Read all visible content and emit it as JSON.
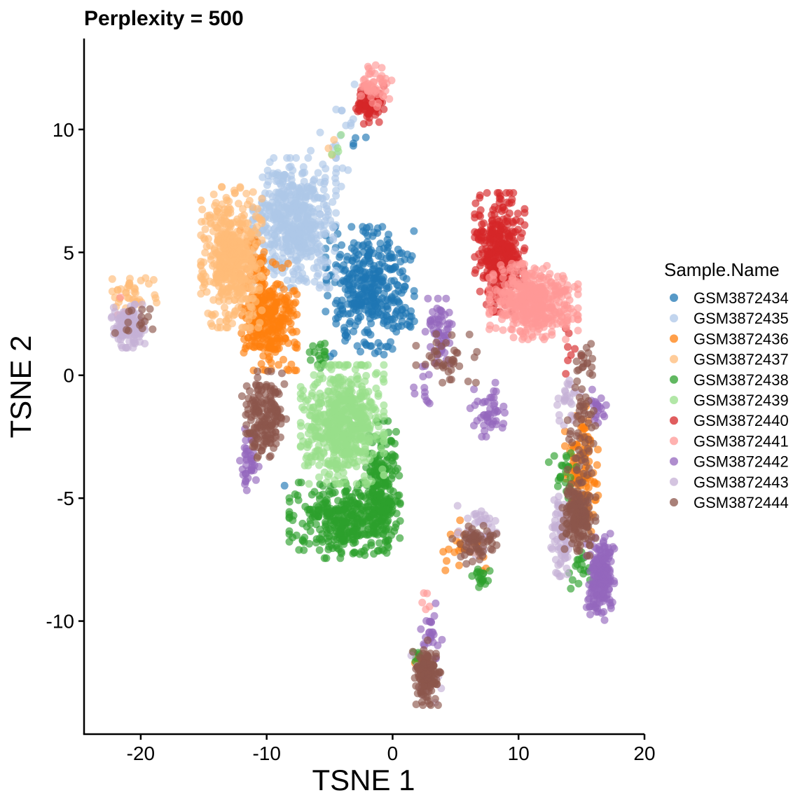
{
  "chart_data": {
    "type": "scatter",
    "title": "Perplexity = 500",
    "xlabel": "TSNE 1",
    "ylabel": "TSNE 2",
    "xlim": [
      -24.5,
      20
    ],
    "ylim": [
      -14.6,
      13.7
    ],
    "x_ticks": [
      -20,
      -10,
      0,
      10,
      20
    ],
    "x_tick_labels": [
      "-20",
      "-10",
      "0",
      "10",
      "20"
    ],
    "y_ticks": [
      -10,
      -5,
      0,
      5,
      10
    ],
    "y_tick_labels": [
      "-10",
      "-5",
      "0",
      "5",
      "10"
    ],
    "grid": false,
    "legend_title": "Sample.Name",
    "legend_position": "right",
    "series": [
      {
        "name": "GSM3872434",
        "color": "#1f77b4",
        "clusters": [
          {
            "cx": -1.8,
            "cy": 3.4,
            "sx": 1.6,
            "sy": 1.2,
            "n": 380
          },
          {
            "cx": -2.5,
            "cy": 9.5,
            "sx": 0.4,
            "sy": 0.4,
            "n": 4
          },
          {
            "cx": -8.5,
            "cy": -4.6,
            "sx": 0.1,
            "sy": 0.1,
            "n": 1
          }
        ]
      },
      {
        "name": "GSM3872435",
        "color": "#aec7e8",
        "clusters": [
          {
            "cx": -7.8,
            "cy": 6.2,
            "sx": 1.5,
            "sy": 1.2,
            "n": 520
          },
          {
            "cx": -5.0,
            "cy": 9.0,
            "sx": 0.9,
            "sy": 0.6,
            "n": 12
          },
          {
            "cx": -3.5,
            "cy": 10.8,
            "sx": 0.6,
            "sy": 0.5,
            "n": 8
          }
        ]
      },
      {
        "name": "GSM3872436",
        "color": "#ff7f0e",
        "clusters": [
          {
            "cx": -9.8,
            "cy": 2.4,
            "sx": 1.0,
            "sy": 1.0,
            "n": 300
          },
          {
            "cx": -11.0,
            "cy": 4.6,
            "sx": 0.5,
            "sy": 0.8,
            "n": 40
          },
          {
            "cx": 15.0,
            "cy": -3.8,
            "sx": 0.6,
            "sy": 1.2,
            "n": 120
          },
          {
            "cx": 6.0,
            "cy": -7.0,
            "sx": 0.9,
            "sy": 0.5,
            "n": 30
          },
          {
            "cx": 2.0,
            "cy": -11.8,
            "sx": 0.4,
            "sy": 0.3,
            "n": 6
          }
        ]
      },
      {
        "name": "GSM3872437",
        "color": "#ffbb78",
        "clusters": [
          {
            "cx": -12.8,
            "cy": 4.8,
            "sx": 1.1,
            "sy": 1.3,
            "n": 480
          },
          {
            "cx": -20.5,
            "cy": 3.3,
            "sx": 0.8,
            "sy": 0.4,
            "n": 40
          },
          {
            "cx": -4.8,
            "cy": 9.4,
            "sx": 0.3,
            "sy": 0.2,
            "n": 3
          }
        ]
      },
      {
        "name": "GSM3872438",
        "color": "#2ca02c",
        "clusters": [
          {
            "cx": -3.8,
            "cy": -5.9,
            "sx": 2.0,
            "sy": 0.7,
            "n": 360
          },
          {
            "cx": -0.8,
            "cy": -4.5,
            "sx": 0.6,
            "sy": 1.2,
            "n": 200
          },
          {
            "cx": -5.8,
            "cy": 0.8,
            "sx": 0.4,
            "sy": 0.3,
            "n": 18
          },
          {
            "cx": 7.0,
            "cy": -8.2,
            "sx": 0.4,
            "sy": 0.2,
            "n": 18
          },
          {
            "cx": 13.5,
            "cy": -4.0,
            "sx": 0.5,
            "sy": 0.5,
            "n": 22
          },
          {
            "cx": 14.8,
            "cy": -7.8,
            "sx": 0.4,
            "sy": 0.4,
            "n": 18
          },
          {
            "cx": 2.0,
            "cy": -11.5,
            "sx": 0.4,
            "sy": 0.3,
            "n": 8
          }
        ]
      },
      {
        "name": "GSM3872439",
        "color": "#98df8a",
        "clusters": [
          {
            "cx": -4.0,
            "cy": -2.0,
            "sx": 1.5,
            "sy": 1.1,
            "n": 600
          },
          {
            "cx": -4.5,
            "cy": 9.3,
            "sx": 0.4,
            "sy": 0.3,
            "n": 4
          }
        ]
      },
      {
        "name": "GSM3872440",
        "color": "#d62728",
        "clusters": [
          {
            "cx": 8.5,
            "cy": 5.0,
            "sx": 0.9,
            "sy": 1.1,
            "n": 360
          },
          {
            "cx": -1.8,
            "cy": 11.0,
            "sx": 0.5,
            "sy": 0.35,
            "n": 70
          },
          {
            "cx": 14.0,
            "cy": 1.0,
            "sx": 0.5,
            "sy": 0.6,
            "n": 8
          }
        ]
      },
      {
        "name": "GSM3872441",
        "color": "#ff9896",
        "clusters": [
          {
            "cx": 11.2,
            "cy": 3.0,
            "sx": 1.6,
            "sy": 0.7,
            "n": 450
          },
          {
            "cx": -1.4,
            "cy": 11.8,
            "sx": 0.6,
            "sy": 0.4,
            "n": 50
          },
          {
            "cx": -21.0,
            "cy": 2.6,
            "sx": 0.5,
            "sy": 0.3,
            "n": 8
          },
          {
            "cx": 2.6,
            "cy": -9.3,
            "sx": 0.3,
            "sy": 0.2,
            "n": 5
          }
        ]
      },
      {
        "name": "GSM3872442",
        "color": "#9467bd",
        "clusters": [
          {
            "cx": 16.5,
            "cy": -8.2,
            "sx": 0.5,
            "sy": 0.8,
            "n": 200
          },
          {
            "cx": 3.7,
            "cy": 1.8,
            "sx": 0.5,
            "sy": 0.6,
            "n": 60
          },
          {
            "cx": 7.7,
            "cy": -1.4,
            "sx": 0.7,
            "sy": 0.5,
            "n": 45
          },
          {
            "cx": -11.4,
            "cy": -3.5,
            "sx": 0.35,
            "sy": 0.6,
            "n": 40
          },
          {
            "cx": 3.1,
            "cy": -10.6,
            "sx": 0.4,
            "sy": 0.6,
            "n": 25
          },
          {
            "cx": 2.5,
            "cy": -0.5,
            "sx": 0.4,
            "sy": 0.4,
            "n": 12
          },
          {
            "cx": 16.2,
            "cy": -1.4,
            "sx": 0.4,
            "sy": 0.4,
            "n": 20
          }
        ]
      },
      {
        "name": "GSM3872443",
        "color": "#c5b0d5",
        "clusters": [
          {
            "cx": -21.0,
            "cy": 2.0,
            "sx": 0.6,
            "sy": 0.4,
            "n": 120
          },
          {
            "cx": 13.4,
            "cy": -6.6,
            "sx": 0.4,
            "sy": 0.8,
            "n": 80
          },
          {
            "cx": 6.7,
            "cy": -6.4,
            "sx": 0.7,
            "sy": 0.5,
            "n": 40
          },
          {
            "cx": 13.8,
            "cy": -1.0,
            "sx": 0.5,
            "sy": 0.6,
            "n": 25
          },
          {
            "cx": 2.8,
            "cy": -12.5,
            "sx": 0.6,
            "sy": 0.5,
            "n": 18
          }
        ]
      },
      {
        "name": "GSM3872444",
        "color": "#8c564b",
        "clusters": [
          {
            "cx": -10.2,
            "cy": -1.6,
            "sx": 0.8,
            "sy": 0.8,
            "n": 180
          },
          {
            "cx": 14.8,
            "cy": -5.8,
            "sx": 0.6,
            "sy": 0.7,
            "n": 160
          },
          {
            "cx": 2.7,
            "cy": -12.1,
            "sx": 0.5,
            "sy": 0.6,
            "n": 140
          },
          {
            "cx": 15.0,
            "cy": -2.0,
            "sx": 0.5,
            "sy": 1.2,
            "n": 60
          },
          {
            "cx": 6.5,
            "cy": -6.9,
            "sx": 0.8,
            "sy": 0.4,
            "n": 60
          },
          {
            "cx": 4.5,
            "cy": 0.8,
            "sx": 1.2,
            "sy": 0.5,
            "n": 40
          },
          {
            "cx": -20.0,
            "cy": 2.2,
            "sx": 1.0,
            "sy": 0.3,
            "n": 15
          },
          {
            "cx": 15.2,
            "cy": 0.4,
            "sx": 0.3,
            "sy": 0.4,
            "n": 15
          }
        ]
      }
    ]
  }
}
